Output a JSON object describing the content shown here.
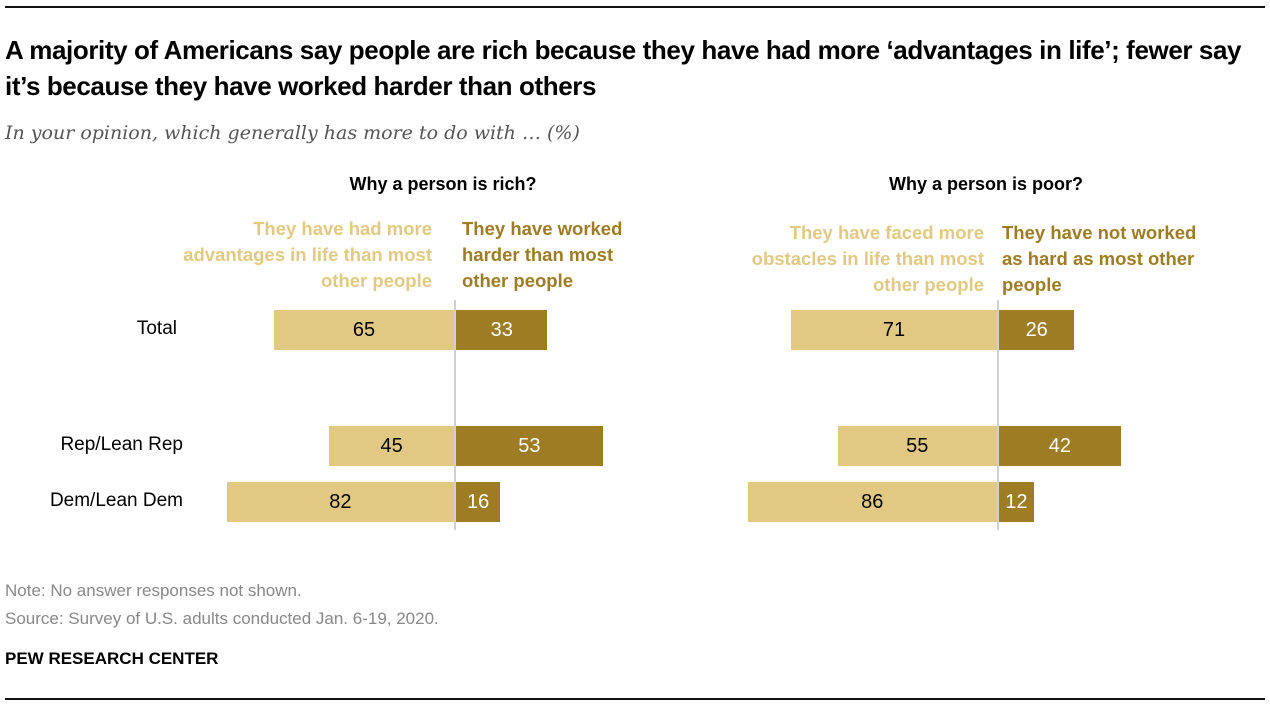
{
  "title": "A majority of Americans say people are rich because they have had more ‘advantages in life’; fewer say it’s because they have worked harder than others",
  "subtitle": "In your opinion, which generally has more to do with … (%)",
  "colors": {
    "light": "#e2c983",
    "dark": "#9e7c23"
  },
  "chart_data": [
    {
      "type": "bar",
      "orientation": "horizontal-diverging",
      "title": "Why a person is rich?",
      "categories": [
        "Total",
        "Rep/Lean Rep",
        "Dem/Lean Dem"
      ],
      "series": [
        {
          "name": "They have had more advantages in life than most other people",
          "values": [
            65,
            45,
            82
          ]
        },
        {
          "name": "They have worked harder than most other people",
          "values": [
            33,
            53,
            16
          ]
        }
      ]
    },
    {
      "type": "bar",
      "orientation": "horizontal-diverging",
      "title": "Why a person is poor?",
      "categories": [
        "Total",
        "Rep/Lean Rep",
        "Dem/Lean Dem"
      ],
      "series": [
        {
          "name": "They have faced more obstacles in life than most other people",
          "values": [
            71,
            55,
            86
          ]
        },
        {
          "name": "They have not worked as hard as most other people",
          "values": [
            26,
            42,
            12
          ]
        }
      ]
    }
  ],
  "note": "Note: No answer responses not shown.",
  "source": "Source: Survey of U.S. adults conducted Jan. 6-19, 2020.",
  "brand": "PEW RESEARCH CENTER"
}
